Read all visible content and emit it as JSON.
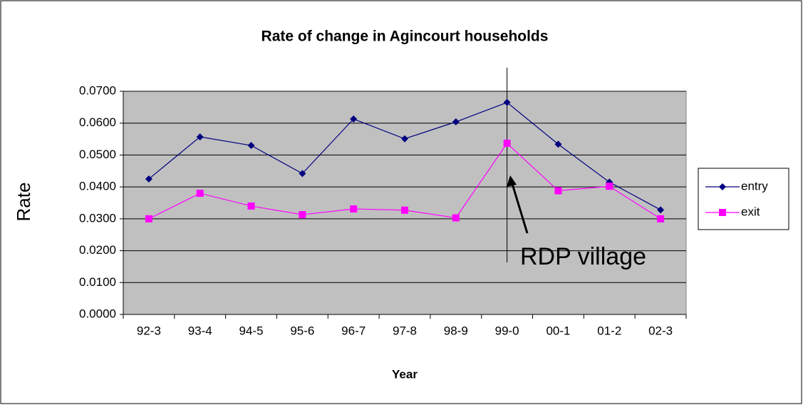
{
  "chart_data": {
    "type": "line",
    "title": "Rate of change in Agincourt households",
    "x_label": "Year",
    "y_label": "Rate",
    "annotation": "RDP village",
    "categories": [
      "92-3",
      "93-4",
      "94-5",
      "95-6",
      "96-7",
      "97-8",
      "98-9",
      "99-0",
      "00-1",
      "01-2",
      "02-3"
    ],
    "series": [
      {
        "name": "entry",
        "color": "#000080",
        "marker": "diamond",
        "values": [
          0.0425,
          0.0557,
          0.053,
          0.0442,
          0.0613,
          0.0551,
          0.0604,
          0.0665,
          0.0534,
          0.0415,
          0.0328
        ]
      },
      {
        "name": "exit",
        "color": "#ff00ff",
        "marker": "square",
        "values": [
          0.03,
          0.038,
          0.034,
          0.0313,
          0.0331,
          0.0327,
          0.0303,
          0.0537,
          0.0388,
          0.0402,
          0.03
        ]
      }
    ],
    "ylim": [
      0,
      0.07
    ],
    "yticks": [
      {
        "value": 0,
        "label": "0.0000"
      },
      {
        "value": 0.01,
        "label": "0.0100"
      },
      {
        "value": 0.02,
        "label": "0.0200"
      },
      {
        "value": 0.03,
        "label": "0.0300"
      },
      {
        "value": 0.04,
        "label": "0.0400"
      },
      {
        "value": 0.05,
        "label": "0.0500"
      },
      {
        "value": 0.06,
        "label": "0.0600"
      },
      {
        "value": 0.07,
        "label": "0.0700"
      }
    ],
    "grid": true,
    "legend": "right",
    "plot_background": "#c0c0c0"
  }
}
